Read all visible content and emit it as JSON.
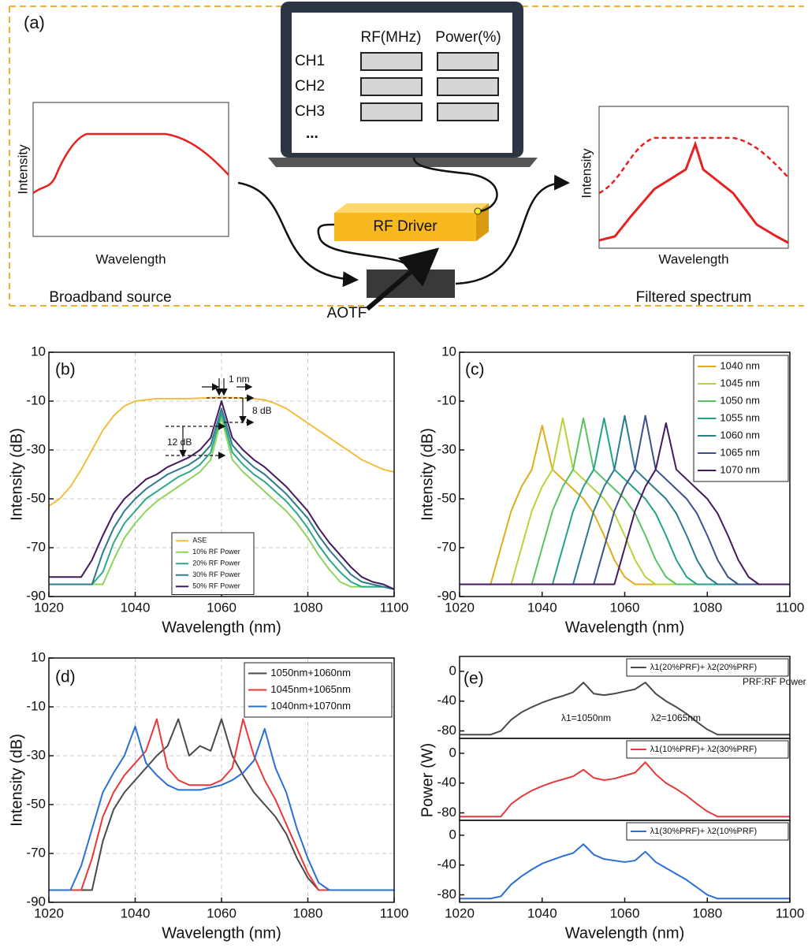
{
  "diagram": {
    "label": "(a)",
    "table_headers": [
      "RF(MHz)",
      "Power(%)"
    ],
    "channels": [
      "CH1",
      "CH2",
      "CH3"
    ],
    "ellipsis": "...",
    "left_plot": {
      "ylabel": "Intensity",
      "xlabel": "Wavelength",
      "caption": "Broadband source"
    },
    "right_plot": {
      "ylabel": "Intensity",
      "xlabel": "Wavelength",
      "caption": "Filtered spectrum"
    },
    "driver": "RF Driver",
    "filter": "AOTF"
  },
  "chart_data": [
    {
      "type": "line",
      "panel": "(b)",
      "xlabel": "Wavelength (nm)",
      "ylabel": "Intensity (dB)",
      "xlim": [
        1020,
        1100
      ],
      "xticks": [
        1020,
        1040,
        1060,
        1080,
        1100
      ],
      "ylim": [
        -90,
        10
      ],
      "yticks": [
        -90,
        -70,
        -50,
        -30,
        -10,
        10
      ],
      "grid": true,
      "legend": "lower center",
      "x": [
        1020,
        1022.5,
        1025,
        1027.5,
        1030,
        1032.5,
        1035,
        1037.5,
        1040,
        1042.5,
        1045,
        1047.5,
        1050,
        1052.5,
        1055,
        1057.5,
        1060,
        1062.5,
        1065,
        1067.5,
        1070,
        1072.5,
        1075,
        1077.5,
        1080,
        1082.5,
        1085,
        1087.5,
        1090,
        1092.5,
        1095,
        1097.5,
        1100
      ],
      "series": [
        {
          "name": "ASE",
          "color": "#f2bd3c",
          "values": [
            -53,
            -50,
            -45,
            -38,
            -30,
            -22,
            -16,
            -12,
            -10,
            -9.5,
            -9,
            -9,
            -9,
            -9,
            -8.8,
            -8.6,
            -8.5,
            -8.6,
            -8.8,
            -9,
            -9.5,
            -11,
            -13,
            -16,
            -19,
            -22,
            -25,
            -28,
            -31,
            -34,
            -36,
            -38,
            -39
          ]
        },
        {
          "name": "10% RF Power",
          "color": "#8fd35a",
          "values": [
            -85,
            -85,
            -85,
            -85,
            -85,
            -85,
            -75,
            -66,
            -60,
            -55,
            -51,
            -48,
            -45,
            -42,
            -39,
            -34,
            -17,
            -34,
            -39,
            -43,
            -47,
            -51,
            -55,
            -60,
            -66,
            -73,
            -79,
            -84,
            -86,
            -86,
            -86,
            -86,
            -87
          ]
        },
        {
          "name": "20% RF Power",
          "color": "#2aa88a",
          "values": [
            -85,
            -85,
            -85,
            -85,
            -85,
            -80,
            -68,
            -60,
            -55,
            -50,
            -47,
            -44,
            -41,
            -39,
            -36,
            -31,
            -15,
            -31,
            -36,
            -40,
            -43,
            -47,
            -51,
            -56,
            -62,
            -69,
            -75,
            -80,
            -84,
            -86,
            -86,
            -86,
            -87
          ]
        },
        {
          "name": "30% RF Power",
          "color": "#2e7b8c",
          "values": [
            -85,
            -85,
            -85,
            -85,
            -85,
            -72,
            -62,
            -55,
            -50,
            -46,
            -43,
            -40,
            -38,
            -36,
            -33,
            -28,
            -13,
            -28,
            -33,
            -37,
            -40,
            -44,
            -48,
            -53,
            -58,
            -65,
            -71,
            -76,
            -81,
            -84,
            -85,
            -86,
            -87
          ]
        },
        {
          "name": "50% RF Power",
          "color": "#44195e",
          "values": [
            -82,
            -82,
            -82,
            -82,
            -75,
            -65,
            -56,
            -50,
            -46,
            -42,
            -40,
            -37,
            -35,
            -33,
            -30,
            -25,
            -10,
            -25,
            -30,
            -34,
            -37,
            -41,
            -45,
            -50,
            -55,
            -62,
            -68,
            -73,
            -78,
            -82,
            -84,
            -85,
            -87
          ]
        }
      ],
      "annotations": [
        "1 nm",
        "8 dB",
        "12 dB"
      ]
    },
    {
      "type": "line",
      "panel": "(c)",
      "xlabel": "Wavelength (nm)",
      "ylabel": "Intensity (dB)",
      "xlim": [
        1020,
        1100
      ],
      "xticks": [
        1020,
        1040,
        1060,
        1080,
        1100
      ],
      "ylim": [
        -90,
        10
      ],
      "yticks": [
        -90,
        -70,
        -50,
        -30,
        -10,
        10
      ],
      "grid": false,
      "legend": "upper right",
      "x": [
        1020,
        1022.5,
        1025,
        1027.5,
        1030,
        1032.5,
        1035,
        1037.5,
        1040,
        1042.5,
        1045,
        1047.5,
        1050,
        1052.5,
        1055,
        1057.5,
        1060,
        1062.5,
        1065,
        1067.5,
        1070,
        1072.5,
        1075,
        1077.5,
        1080,
        1082.5,
        1085,
        1087.5,
        1090,
        1092.5,
        1095,
        1097.5,
        1100
      ],
      "series": [
        {
          "name": "1040 nm",
          "color": "#e0ac1e",
          "values": [
            -85,
            -85,
            -85,
            -85,
            -70,
            -55,
            -45,
            -38,
            -20,
            -38,
            -42,
            -46,
            -50,
            -56,
            -65,
            -75,
            -82,
            -85,
            -85,
            -85,
            -85,
            -85,
            -85,
            -85,
            -85,
            -85,
            -85,
            -85,
            -85,
            -85,
            -85,
            -85,
            -85
          ]
        },
        {
          "name": "1045 nm",
          "color": "#b4d53a",
          "values": [
            -85,
            -85,
            -85,
            -85,
            -85,
            -85,
            -70,
            -55,
            -45,
            -38,
            -17,
            -38,
            -42,
            -46,
            -50,
            -56,
            -65,
            -75,
            -82,
            -85,
            -85,
            -85,
            -85,
            -85,
            -85,
            -85,
            -85,
            -85,
            -85,
            -85,
            -85,
            -85,
            -85
          ]
        },
        {
          "name": "1050 nm",
          "color": "#5ac262",
          "values": [
            -85,
            -85,
            -85,
            -85,
            -85,
            -85,
            -85,
            -85,
            -70,
            -55,
            -45,
            -38,
            -17,
            -38,
            -42,
            -46,
            -50,
            -56,
            -65,
            -75,
            -82,
            -85,
            -85,
            -85,
            -85,
            -85,
            -85,
            -85,
            -85,
            -85,
            -85,
            -85,
            -85
          ]
        },
        {
          "name": "1055 nm",
          "color": "#22a389",
          "values": [
            -85,
            -85,
            -85,
            -85,
            -85,
            -85,
            -85,
            -85,
            -85,
            -85,
            -70,
            -55,
            -45,
            -38,
            -17,
            -38,
            -42,
            -46,
            -50,
            -56,
            -65,
            -75,
            -82,
            -85,
            -85,
            -85,
            -85,
            -85,
            -85,
            -85,
            -85,
            -85,
            -85
          ]
        },
        {
          "name": "1060 nm",
          "color": "#2b7a8e",
          "values": [
            -85,
            -85,
            -85,
            -85,
            -85,
            -85,
            -85,
            -85,
            -85,
            -85,
            -85,
            -85,
            -70,
            -55,
            -45,
            -38,
            -16,
            -38,
            -42,
            -46,
            -50,
            -56,
            -65,
            -75,
            -82,
            -85,
            -85,
            -85,
            -85,
            -85,
            -85,
            -85,
            -85
          ]
        },
        {
          "name": "1065 nm",
          "color": "#3b4f8b",
          "values": [
            -85,
            -85,
            -85,
            -85,
            -85,
            -85,
            -85,
            -85,
            -85,
            -85,
            -85,
            -85,
            -85,
            -85,
            -70,
            -55,
            -45,
            -38,
            -16,
            -38,
            -42,
            -46,
            -50,
            -56,
            -65,
            -75,
            -82,
            -85,
            -85,
            -85,
            -85,
            -85,
            -85
          ]
        },
        {
          "name": "1070 nm",
          "color": "#44195e",
          "values": [
            -85,
            -85,
            -85,
            -85,
            -85,
            -85,
            -85,
            -85,
            -85,
            -85,
            -85,
            -85,
            -85,
            -85,
            -85,
            -85,
            -70,
            -55,
            -45,
            -38,
            -19,
            -38,
            -42,
            -46,
            -50,
            -56,
            -65,
            -75,
            -82,
            -85,
            -85,
            -85,
            -85
          ]
        }
      ]
    },
    {
      "type": "line",
      "panel": "(d)",
      "xlabel": "Wavelength (nm)",
      "ylabel": "Intensity (dB)",
      "xlim": [
        1020,
        1100
      ],
      "xticks": [
        1020,
        1040,
        1060,
        1080,
        1100
      ],
      "ylim": [
        -90,
        10
      ],
      "yticks": [
        -90,
        -70,
        -50,
        -30,
        -10,
        10
      ],
      "grid": true,
      "legend": "upper right",
      "x": [
        1020,
        1022.5,
        1025,
        1027.5,
        1030,
        1032.5,
        1035,
        1037.5,
        1040,
        1042.5,
        1045,
        1047.5,
        1050,
        1052.5,
        1055,
        1057.5,
        1060,
        1062.5,
        1065,
        1067.5,
        1070,
        1072.5,
        1075,
        1077.5,
        1080,
        1082.5,
        1085,
        1087.5,
        1090,
        1092.5,
        1095,
        1097.5,
        1100
      ],
      "series": [
        {
          "name": "1050nm+1060nm",
          "color": "#4a4a4a",
          "values": [
            -85,
            -85,
            -85,
            -85,
            -85,
            -65,
            -52,
            -45,
            -40,
            -35,
            -30,
            -26,
            -15,
            -30,
            -26,
            -28,
            -15,
            -30,
            -38,
            -45,
            -50,
            -55,
            -62,
            -72,
            -80,
            -85,
            -85,
            -85,
            -85,
            -85,
            -85,
            -85,
            -85
          ]
        },
        {
          "name": "1045nm+1065nm",
          "color": "#e8393a",
          "values": [
            -85,
            -85,
            -85,
            -85,
            -72,
            -55,
            -45,
            -38,
            -33,
            -28,
            -15,
            -35,
            -40,
            -42,
            -42,
            -42,
            -40,
            -35,
            -15,
            -30,
            -40,
            -48,
            -58,
            -68,
            -78,
            -85,
            -85,
            -85,
            -85,
            -85,
            -85,
            -85,
            -85
          ]
        },
        {
          "name": "1040nm+1070nm",
          "color": "#2a6fd6",
          "values": [
            -85,
            -85,
            -85,
            -75,
            -60,
            -45,
            -37,
            -30,
            -18,
            -33,
            -38,
            -42,
            -44,
            -44,
            -44,
            -43,
            -42,
            -40,
            -37,
            -32,
            -19,
            -35,
            -45,
            -60,
            -72,
            -82,
            -85,
            -85,
            -85,
            -85,
            -85,
            -85,
            -85
          ]
        }
      ]
    },
    {
      "type": "line",
      "panel": "(e)",
      "ylabel": "Power (W)",
      "xlim": [
        1020,
        1100
      ],
      "ylim": [
        -90,
        20
      ],
      "yticks": [
        -80,
        -40,
        0
      ],
      "grid": false,
      "legend": "upper right",
      "x": [
        1020,
        1022.5,
        1025,
        1027.5,
        1030,
        1032.5,
        1035,
        1037.5,
        1040,
        1042.5,
        1045,
        1047.5,
        1050,
        1052.5,
        1055,
        1057.5,
        1060,
        1062.5,
        1065,
        1067.5,
        1070,
        1072.5,
        1075,
        1077.5,
        1080,
        1082.5,
        1085,
        1087.5,
        1090,
        1092.5,
        1095,
        1097.5,
        1100
      ],
      "series": [
        {
          "name": "λ1(20%PRF)+ λ2(20%PRF)",
          "color": "#4a4a4a",
          "values": [
            -85,
            -85,
            -85,
            -85,
            -80,
            -65,
            -55,
            -48,
            -42,
            -37,
            -33,
            -28,
            -15,
            -30,
            -32,
            -30,
            -27,
            -24,
            -15,
            -30,
            -40,
            -48,
            -57,
            -68,
            -78,
            -85,
            -85,
            -85,
            -85,
            -85,
            -85,
            -85,
            -85
          ]
        }
      ],
      "annotations": [
        "PRF:RF Power",
        "λ1=1050nm",
        "λ2=1065nm"
      ]
    },
    {
      "type": "line",
      "xlim": [
        1020,
        1100
      ],
      "ylim": [
        -90,
        20
      ],
      "yticks": [
        -80,
        -40,
        0
      ],
      "grid": false,
      "legend": "upper right",
      "x": [
        1020,
        1022.5,
        1025,
        1027.5,
        1030,
        1032.5,
        1035,
        1037.5,
        1040,
        1042.5,
        1045,
        1047.5,
        1050,
        1052.5,
        1055,
        1057.5,
        1060,
        1062.5,
        1065,
        1067.5,
        1070,
        1072.5,
        1075,
        1077.5,
        1080,
        1082.5,
        1085,
        1087.5,
        1090,
        1092.5,
        1095,
        1097.5,
        1100
      ],
      "series": [
        {
          "name": "λ1(10%PRF)+ λ2(30%PRF)",
          "color": "#e8393a",
          "values": [
            -85,
            -85,
            -85,
            -85,
            -85,
            -68,
            -58,
            -50,
            -44,
            -39,
            -35,
            -31,
            -22,
            -33,
            -36,
            -34,
            -30,
            -26,
            -12,
            -28,
            -40,
            -48,
            -57,
            -68,
            -78,
            -85,
            -85,
            -85,
            -85,
            -85,
            -85,
            -85,
            -85
          ]
        }
      ]
    },
    {
      "type": "line",
      "xlabel": "Wavelength (nm)",
      "xlim": [
        1020,
        1100
      ],
      "xticks": [
        1020,
        1040,
        1060,
        1080,
        1100
      ],
      "ylim": [
        -90,
        20
      ],
      "yticks": [
        -80,
        -40,
        0
      ],
      "grid": false,
      "legend": "upper right",
      "x": [
        1020,
        1022.5,
        1025,
        1027.5,
        1030,
        1032.5,
        1035,
        1037.5,
        1040,
        1042.5,
        1045,
        1047.5,
        1050,
        1052.5,
        1055,
        1057.5,
        1060,
        1062.5,
        1065,
        1067.5,
        1070,
        1072.5,
        1075,
        1077.5,
        1080,
        1082.5,
        1085,
        1087.5,
        1090,
        1092.5,
        1095,
        1097.5,
        1100
      ],
      "series": [
        {
          "name": "λ1(30%PRF)+ λ2(10%PRF)",
          "color": "#2a6fd6",
          "values": [
            -85,
            -85,
            -85,
            -85,
            -82,
            -66,
            -55,
            -46,
            -38,
            -33,
            -28,
            -24,
            -12,
            -26,
            -32,
            -34,
            -36,
            -34,
            -22,
            -36,
            -44,
            -52,
            -60,
            -70,
            -80,
            -85,
            -85,
            -85,
            -85,
            -85,
            -85,
            -85,
            -85
          ]
        }
      ]
    }
  ]
}
